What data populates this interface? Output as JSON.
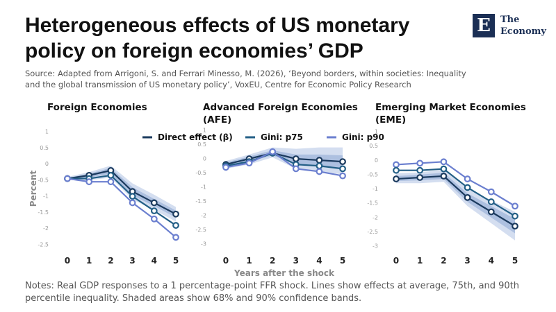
{
  "title": "Heterogeneous effects of US monetary policy on foreign economies’ GDP",
  "source": "Source: Adapted from Arrigoni, S. and Ferrari Minesso, M. (2026), ‘Beyond borders, within societies: Inequality and the global transmission of US monetary policy’, VoxEU, Centre for Economic Policy Research",
  "notes": "Notes: Real GDP responses to a 1 percentage-point FFR shock. Lines show effects at average, 75th, and 90th percentile inequality. Shaded areas show 68% and 90% confidence bands.",
  "logo": "E",
  "brand": [
    "The",
    "Economy"
  ],
  "chart_data": [
    {
      "type": "line",
      "title": "Foreign Economies",
      "ylabel": "Percent",
      "x": [
        0,
        1,
        2,
        3,
        4,
        5
      ],
      "xlim": [
        -0.4,
        5.4
      ],
      "xticks": [
        0,
        1,
        2,
        3,
        4,
        5
      ],
      "ylim": [
        -2.5,
        1
      ],
      "yticks": [
        1,
        0.5,
        0,
        -0.5,
        -1,
        -1.5,
        -2,
        -2.5
      ],
      "bands": [
        {
          "color": "#c9d6ec",
          "lower": [
            -0.5,
            -0.5,
            -0.42,
            -1.1,
            -1.42,
            -1.78
          ],
          "upper": [
            -0.4,
            -0.25,
            -0.05,
            -0.6,
            -0.95,
            -1.33
          ]
        },
        {
          "color": "#a3b8dc",
          "lower": [
            -0.47,
            -0.42,
            -0.3,
            -0.97,
            -1.3,
            -1.66
          ],
          "upper": [
            -0.43,
            -0.3,
            -0.12,
            -0.72,
            -1.08,
            -1.44
          ]
        }
      ],
      "series": [
        {
          "color": "#1b3a5e",
          "values": [
            -0.45,
            -0.35,
            -0.2,
            -0.85,
            -1.2,
            -1.55
          ]
        },
        {
          "color": "#235f86",
          "values": [
            -0.45,
            -0.45,
            -0.35,
            -1.0,
            -1.45,
            -1.9
          ]
        },
        {
          "color": "#6b7fcf",
          "values": [
            -0.45,
            -0.55,
            -0.55,
            -1.2,
            -1.7,
            -2.27
          ]
        }
      ]
    },
    {
      "type": "line",
      "title": "Advanced Foreign Economies (AFE)",
      "xlabel": "Years after the shock",
      "x": [
        0,
        1,
        2,
        3,
        4,
        5
      ],
      "xlim": [
        -0.4,
        5.4
      ],
      "xticks": [
        0,
        1,
        2,
        3,
        4,
        5
      ],
      "ylim": [
        -3,
        1
      ],
      "yticks": [
        1,
        0.5,
        0,
        -0.5,
        -1,
        -1.5,
        -2,
        -2.5,
        -3
      ],
      "bands": [
        {
          "color": "#c9d6ec",
          "lower": [
            -0.35,
            -0.2,
            0.05,
            -0.35,
            -0.45,
            -0.55
          ],
          "upper": [
            -0.08,
            0.15,
            0.4,
            0.35,
            0.4,
            0.4
          ]
        },
        {
          "color": "#a3b8dc",
          "lower": [
            -0.28,
            -0.1,
            0.12,
            -0.18,
            -0.25,
            -0.32
          ],
          "upper": [
            -0.13,
            0.08,
            0.3,
            0.15,
            0.15,
            0.12
          ]
        }
      ],
      "series": [
        {
          "name": "Direct effect (β)",
          "color": "#1b3a5e",
          "values": [
            -0.2,
            0,
            0.2,
            0,
            -0.05,
            -0.1
          ]
        },
        {
          "name": "Gini: p75",
          "color": "#235f86",
          "values": [
            -0.25,
            -0.1,
            0.2,
            -0.2,
            -0.25,
            -0.35
          ]
        },
        {
          "name": "Gini: p90",
          "color": "#6b7fcf",
          "values": [
            -0.3,
            -0.15,
            0.25,
            -0.35,
            -0.45,
            -0.6
          ]
        }
      ]
    },
    {
      "type": "line",
      "title": "Emerging Market Economies (EME)",
      "x": [
        0,
        1,
        2,
        3,
        4,
        5
      ],
      "xlim": [
        -0.4,
        5.4
      ],
      "xticks": [
        0,
        1,
        2,
        3,
        4,
        5
      ],
      "ylim": [
        -3,
        1
      ],
      "yticks": [
        1,
        0.5,
        0,
        -0.5,
        -1,
        -1.5,
        -2,
        -2.5,
        -3
      ],
      "bands": [
        {
          "color": "#c9d6ec",
          "lower": [
            -0.8,
            -0.8,
            -0.75,
            -1.6,
            -2.2,
            -2.8
          ],
          "upper": [
            -0.45,
            -0.42,
            -0.33,
            -1.0,
            -1.4,
            -1.8
          ]
        },
        {
          "color": "#a3b8dc",
          "lower": [
            -0.72,
            -0.7,
            -0.65,
            -1.45,
            -2.0,
            -2.55
          ],
          "upper": [
            -0.55,
            -0.5,
            -0.43,
            -1.15,
            -1.6,
            -2.05
          ]
        }
      ],
      "series": [
        {
          "color": "#6b7fcf",
          "values": [
            -0.15,
            -0.1,
            -0.05,
            -0.65,
            -1.1,
            -1.6
          ]
        },
        {
          "color": "#235f86",
          "values": [
            -0.35,
            -0.35,
            -0.3,
            -0.95,
            -1.45,
            -1.95
          ]
        },
        {
          "color": "#1b3a5e",
          "values": [
            -0.65,
            -0.6,
            -0.55,
            -1.3,
            -1.8,
            -2.3
          ]
        }
      ]
    }
  ]
}
